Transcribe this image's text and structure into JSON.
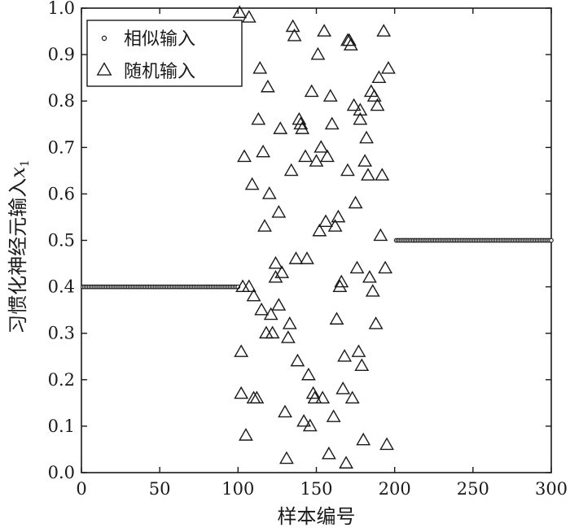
{
  "chart_data": {
    "type": "scatter",
    "title": "",
    "xlabel": "样本编号",
    "ylabel": "习惯化神经元输入",
    "ylabel_symbol": "x",
    "ylabel_subscript": "1",
    "xlim": [
      0,
      300
    ],
    "ylim": [
      0.0,
      1.0
    ],
    "xticks": [
      0,
      50,
      100,
      150,
      200,
      250,
      300
    ],
    "xtick_labels": [
      "0",
      "50",
      "100",
      "150",
      "200",
      "250",
      "300"
    ],
    "yticks": [
      0.0,
      0.1,
      0.2,
      0.3,
      0.4,
      0.5,
      0.6,
      0.7,
      0.8,
      0.9,
      1.0
    ],
    "ytick_labels": [
      "0.0",
      "0.1",
      "0.2",
      "0.3",
      "0.4",
      "0.5",
      "0.6",
      "0.7",
      "0.8",
      "0.9",
      "1.0"
    ],
    "grid": false,
    "legend_position": "top-left",
    "series": [
      {
        "name": "相似输入",
        "marker": "circle",
        "color": "#1a1a1a",
        "segments": [
          {
            "x_start": 1,
            "x_end": 100,
            "y": 0.4
          },
          {
            "x_start": 201,
            "x_end": 300,
            "y": 0.5
          }
        ]
      },
      {
        "name": "随机输入",
        "marker": "triangle",
        "color": "#1a1a1a",
        "points": [
          [
            101,
            0.99
          ],
          [
            102,
            0.26
          ],
          [
            102,
            0.17
          ],
          [
            103,
            0.4
          ],
          [
            104,
            0.68
          ],
          [
            105,
            0.08
          ],
          [
            107,
            0.98
          ],
          [
            107,
            0.4
          ],
          [
            109,
            0.62
          ],
          [
            110,
            0.38
          ],
          [
            110,
            0.16
          ],
          [
            112,
            0.16
          ],
          [
            113,
            0.76
          ],
          [
            114,
            0.87
          ],
          [
            115,
            0.35
          ],
          [
            116,
            0.69
          ],
          [
            117,
            0.53
          ],
          [
            118,
            0.3
          ],
          [
            119,
            0.83
          ],
          [
            120,
            0.6
          ],
          [
            121,
            0.34
          ],
          [
            122,
            0.3
          ],
          [
            124,
            0.45
          ],
          [
            124,
            0.42
          ],
          [
            126,
            0.56
          ],
          [
            126,
            0.36
          ],
          [
            127,
            0.74
          ],
          [
            128,
            0.43
          ],
          [
            130,
            0.13
          ],
          [
            131,
            0.03
          ],
          [
            132,
            0.29
          ],
          [
            133,
            0.32
          ],
          [
            134,
            0.65
          ],
          [
            135,
            0.96
          ],
          [
            136,
            0.94
          ],
          [
            137,
            0.46
          ],
          [
            138,
            0.24
          ],
          [
            139,
            0.76
          ],
          [
            140,
            0.75
          ],
          [
            141,
            0.74
          ],
          [
            142,
            0.11
          ],
          [
            143,
            0.68
          ],
          [
            144,
            0.46
          ],
          [
            145,
            0.21
          ],
          [
            146,
            0.1
          ],
          [
            147,
            0.82
          ],
          [
            148,
            0.17
          ],
          [
            149,
            0.16
          ],
          [
            150,
            0.67
          ],
          [
            151,
            0.9
          ],
          [
            152,
            0.52
          ],
          [
            153,
            0.7
          ],
          [
            154,
            0.16
          ],
          [
            155,
            0.95
          ],
          [
            156,
            0.54
          ],
          [
            157,
            0.68
          ],
          [
            158,
            0.04
          ],
          [
            159,
            0.81
          ],
          [
            160,
            0.75
          ],
          [
            161,
            0.12
          ],
          [
            162,
            0.53
          ],
          [
            163,
            0.33
          ],
          [
            164,
            0.55
          ],
          [
            165,
            0.4
          ],
          [
            166,
            0.41
          ],
          [
            167,
            0.18
          ],
          [
            168,
            0.25
          ],
          [
            169,
            0.02
          ],
          [
            170,
            0.65
          ],
          [
            170,
            0.93
          ],
          [
            171,
            0.93
          ],
          [
            172,
            0.92
          ],
          [
            173,
            0.16
          ],
          [
            174,
            0.79
          ],
          [
            175,
            0.58
          ],
          [
            176,
            0.44
          ],
          [
            177,
            0.26
          ],
          [
            178,
            0.76
          ],
          [
            178,
            0.78
          ],
          [
            179,
            0.23
          ],
          [
            180,
            0.07
          ],
          [
            181,
            0.67
          ],
          [
            182,
            0.72
          ],
          [
            183,
            0.64
          ],
          [
            184,
            0.42
          ],
          [
            185,
            0.82
          ],
          [
            186,
            0.39
          ],
          [
            187,
            0.81
          ],
          [
            188,
            0.32
          ],
          [
            189,
            0.79
          ],
          [
            190,
            0.85
          ],
          [
            191,
            0.51
          ],
          [
            192,
            0.64
          ],
          [
            193,
            0.95
          ],
          [
            194,
            0.44
          ],
          [
            195,
            0.06
          ],
          [
            196,
            0.87
          ]
        ]
      }
    ]
  }
}
